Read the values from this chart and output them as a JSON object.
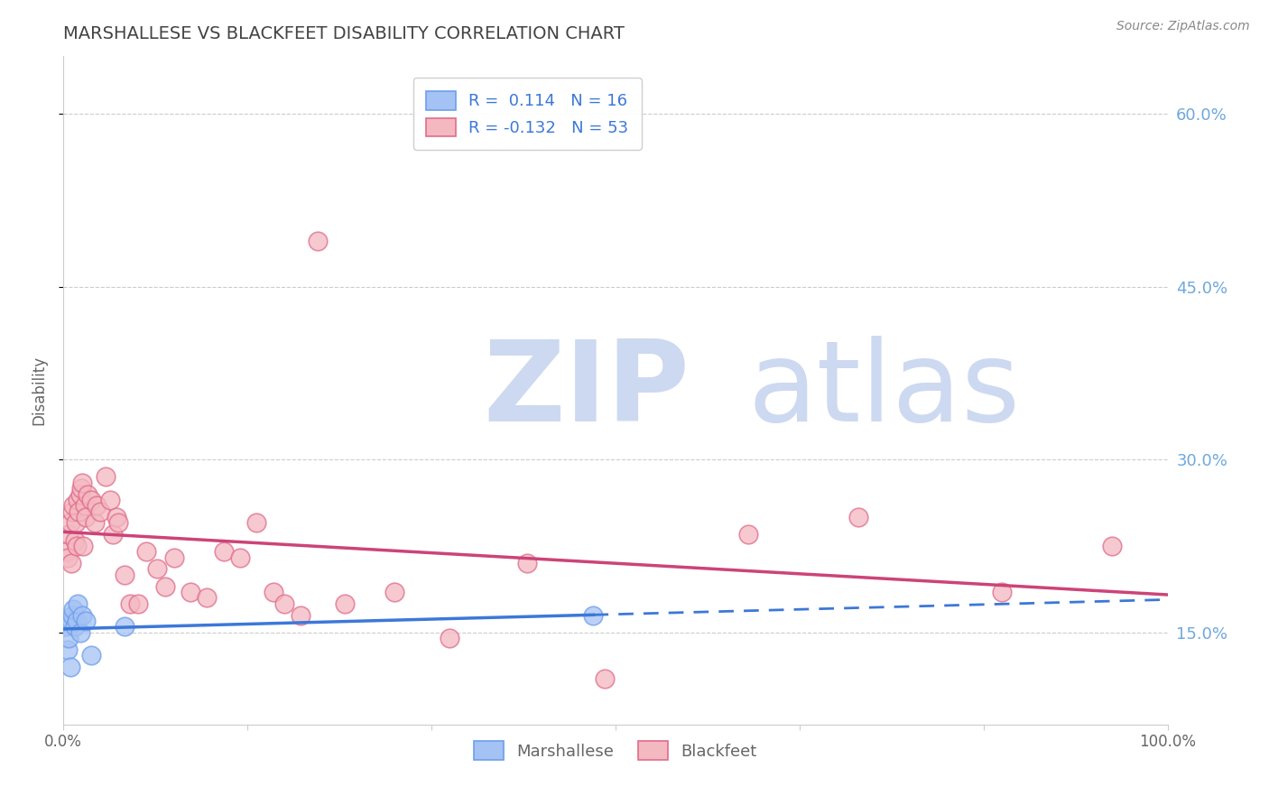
{
  "title": "MARSHALLESE VS BLACKFEET DISABILITY CORRELATION CHART",
  "source": "Source: ZipAtlas.com",
  "ylabel": "Disability",
  "xlim": [
    0.0,
    1.0
  ],
  "ylim": [
    0.07,
    0.65
  ],
  "yticks": [
    0.15,
    0.3,
    0.45,
    0.6
  ],
  "right_ytick_labels": [
    "15.0%",
    "30.0%",
    "45.0%",
    "60.0%"
  ],
  "marshallese_color": "#a4c2f4",
  "blackfeet_color": "#f4b8c1",
  "marshallese_edge_color": "#6d9eeb",
  "blackfeet_edge_color": "#e06c8a",
  "marshallese_line_color": "#3c78d8",
  "blackfeet_line_color": "#cc4477",
  "R_marshallese": 0.114,
  "N_marshallese": 16,
  "R_blackfeet": -0.132,
  "N_blackfeet": 53,
  "marshallese_x": [
    0.002,
    0.004,
    0.005,
    0.006,
    0.007,
    0.008,
    0.009,
    0.01,
    0.012,
    0.013,
    0.015,
    0.017,
    0.02,
    0.025,
    0.055,
    0.48
  ],
  "marshallese_y": [
    0.155,
    0.135,
    0.145,
    0.12,
    0.16,
    0.165,
    0.17,
    0.155,
    0.16,
    0.175,
    0.15,
    0.165,
    0.16,
    0.13,
    0.155,
    0.165
  ],
  "blackfeet_x": [
    0.003,
    0.004,
    0.005,
    0.006,
    0.007,
    0.008,
    0.009,
    0.01,
    0.011,
    0.012,
    0.013,
    0.014,
    0.015,
    0.016,
    0.017,
    0.018,
    0.019,
    0.02,
    0.022,
    0.025,
    0.028,
    0.03,
    0.033,
    0.038,
    0.042,
    0.045,
    0.048,
    0.05,
    0.055,
    0.06,
    0.068,
    0.075,
    0.085,
    0.092,
    0.1,
    0.115,
    0.13,
    0.145,
    0.16,
    0.175,
    0.19,
    0.2,
    0.215,
    0.23,
    0.255,
    0.3,
    0.35,
    0.42,
    0.49,
    0.62,
    0.72,
    0.85,
    0.95
  ],
  "blackfeet_y": [
    0.22,
    0.215,
    0.235,
    0.245,
    0.21,
    0.255,
    0.26,
    0.23,
    0.245,
    0.225,
    0.265,
    0.255,
    0.27,
    0.275,
    0.28,
    0.225,
    0.26,
    0.25,
    0.27,
    0.265,
    0.245,
    0.26,
    0.255,
    0.285,
    0.265,
    0.235,
    0.25,
    0.245,
    0.2,
    0.175,
    0.175,
    0.22,
    0.205,
    0.19,
    0.215,
    0.185,
    0.18,
    0.22,
    0.215,
    0.245,
    0.185,
    0.175,
    0.165,
    0.49,
    0.175,
    0.185,
    0.145,
    0.21,
    0.11,
    0.235,
    0.25,
    0.185,
    0.225
  ],
  "watermark_zip": "ZIP",
  "watermark_atlas": "atlas",
  "watermark_color": "#cdd9f0",
  "background_color": "#ffffff",
  "grid_color": "#cccccc",
  "title_color": "#434343",
  "source_color": "#888888",
  "right_axis_color": "#6fa8dc",
  "bottom_label_color": "#666666"
}
